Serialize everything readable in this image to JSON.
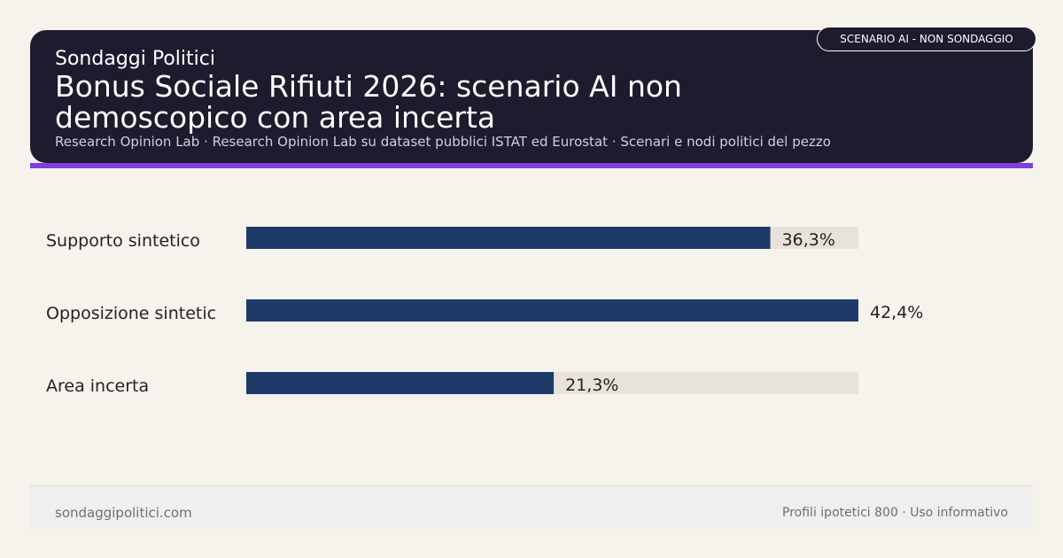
{
  "header": {
    "kicker": "Sondaggi Politici",
    "title": "Bonus Sociale Rifiuti 2026: scenario AI non demoscopico con area incerta",
    "subtitle": "Research Opinion Lab · Research Opinion Lab su dataset pubblici ISTAT ed Eurostat · Scenari e nodi politici del pezzo",
    "badge": "SCENARIO AI - NON SONDAGGIO"
  },
  "colors": {
    "header_bg": "#1c1c2e",
    "accent": "#7b3fe4",
    "bar": "#1e3a68",
    "track": "#e8e2da",
    "background": "#f6f3ec"
  },
  "chart_data": {
    "type": "bar",
    "orientation": "horizontal",
    "categories": [
      "Supporto sintetico",
      "Opposizione sintetic",
      "Area incerta"
    ],
    "values": [
      36.3,
      42.4,
      21.3
    ],
    "value_labels": [
      "36,3%",
      "42,4%",
      "21,3%"
    ],
    "xlim": [
      0,
      42.4
    ],
    "grid": false,
    "legend": "none"
  },
  "footer": {
    "left": "sondaggipolitici.com",
    "right": "Profili ipotetici 800 · Uso informativo"
  }
}
